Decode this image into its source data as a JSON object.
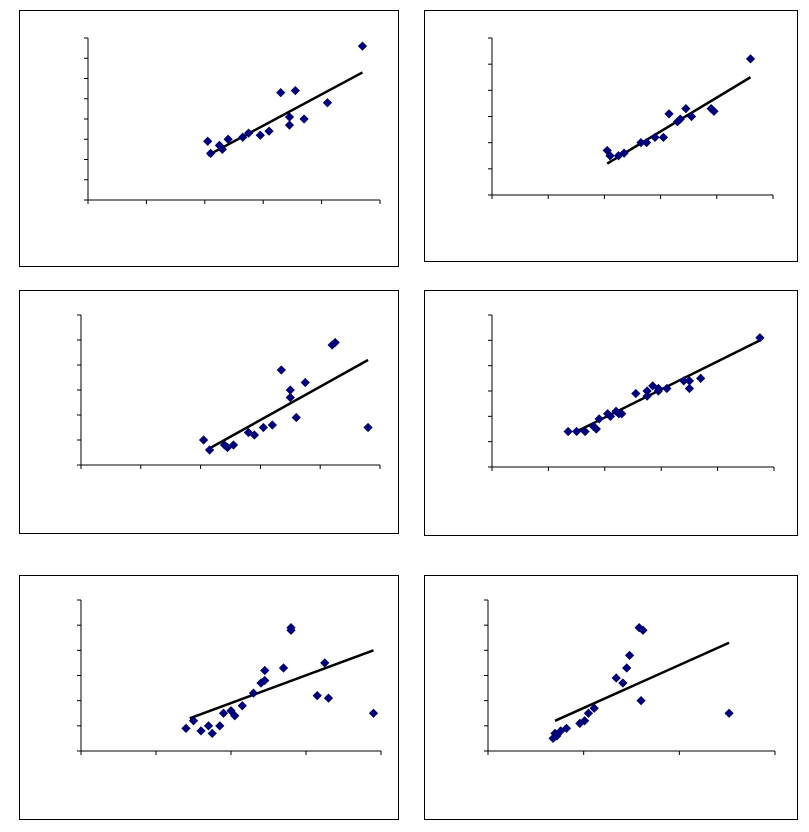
{
  "colors": {
    "marker_fill": "#00007f",
    "marker_stroke": "#000066",
    "trendline": "#000000",
    "axis": "#000000",
    "panel_border": "#000000",
    "background": "#ffffff"
  },
  "chart_data": [
    {
      "type": "scatter",
      "marker": "diamond",
      "trendline": "linear",
      "grid": false,
      "xlim": [
        0,
        10
      ],
      "ylim": [
        0,
        8
      ],
      "xticks": [
        0,
        2,
        4,
        6,
        8,
        10
      ],
      "yticks": [
        0,
        1,
        2,
        3,
        4,
        5,
        6,
        7,
        8
      ],
      "points": [
        [
          4.1,
          2.9
        ],
        [
          4.2,
          2.3
        ],
        [
          4.5,
          2.7
        ],
        [
          4.6,
          2.5
        ],
        [
          4.8,
          3.0
        ],
        [
          5.3,
          3.1
        ],
        [
          5.5,
          3.3
        ],
        [
          5.9,
          3.2
        ],
        [
          6.2,
          3.4
        ],
        [
          6.6,
          5.3
        ],
        [
          6.9,
          3.7
        ],
        [
          6.9,
          4.1
        ],
        [
          7.1,
          5.4
        ],
        [
          7.4,
          4.0
        ],
        [
          8.2,
          4.8
        ],
        [
          9.4,
          7.6
        ]
      ],
      "trend_line": [
        [
          4.1,
          2.2
        ],
        [
          9.4,
          6.3
        ]
      ]
    },
    {
      "type": "scatter",
      "marker": "diamond",
      "trendline": "linear",
      "grid": false,
      "xlim": [
        0,
        10
      ],
      "ylim": [
        0,
        6
      ],
      "xticks": [
        0,
        2,
        4,
        6,
        8,
        10
      ],
      "yticks": [
        0,
        1,
        2,
        3,
        4,
        5,
        6
      ],
      "points": [
        [
          4.1,
          1.7
        ],
        [
          4.2,
          1.5
        ],
        [
          4.5,
          1.5
        ],
        [
          4.7,
          1.6
        ],
        [
          5.3,
          2.0
        ],
        [
          5.5,
          2.0
        ],
        [
          5.8,
          2.2
        ],
        [
          6.1,
          2.2
        ],
        [
          6.3,
          3.1
        ],
        [
          6.6,
          2.8
        ],
        [
          6.7,
          2.9
        ],
        [
          6.9,
          3.3
        ],
        [
          7.1,
          3.0
        ],
        [
          7.8,
          3.3
        ],
        [
          7.9,
          3.2
        ],
        [
          9.2,
          5.2
        ]
      ],
      "trend_line": [
        [
          4.1,
          1.2
        ],
        [
          9.2,
          4.5
        ]
      ]
    },
    {
      "type": "scatter",
      "marker": "diamond",
      "trendline": "linear",
      "grid": false,
      "xlim": [
        0,
        10
      ],
      "ylim": [
        0,
        6
      ],
      "xticks": [
        0,
        2,
        4,
        6,
        8,
        10
      ],
      "yticks": [
        0,
        1,
        2,
        3,
        4,
        5,
        6
      ],
      "points": [
        [
          4.3,
          0.6
        ],
        [
          4.1,
          1.0
        ],
        [
          4.8,
          0.8
        ],
        [
          4.9,
          0.7
        ],
        [
          5.1,
          0.8
        ],
        [
          5.6,
          1.3
        ],
        [
          5.8,
          1.2
        ],
        [
          6.1,
          1.5
        ],
        [
          6.4,
          1.6
        ],
        [
          6.7,
          3.8
        ],
        [
          7.0,
          2.7
        ],
        [
          7.0,
          3.0
        ],
        [
          7.2,
          1.9
        ],
        [
          7.5,
          3.3
        ],
        [
          8.4,
          4.8
        ],
        [
          8.5,
          4.9
        ],
        [
          9.6,
          1.5
        ]
      ],
      "trend_line": [
        [
          4.2,
          0.6
        ],
        [
          9.6,
          4.2
        ]
      ]
    },
    {
      "type": "scatter",
      "marker": "diamond",
      "trendline": "linear",
      "grid": false,
      "xlim": [
        0,
        10
      ],
      "ylim": [
        0,
        6
      ],
      "xticks": [
        0,
        2,
        4,
        6,
        8,
        10
      ],
      "yticks": [
        0,
        1,
        2,
        3,
        4,
        5,
        6
      ],
      "points": [
        [
          2.7,
          1.4
        ],
        [
          3.0,
          1.4
        ],
        [
          3.3,
          1.4
        ],
        [
          3.6,
          1.6
        ],
        [
          3.7,
          1.5
        ],
        [
          3.8,
          1.9
        ],
        [
          4.1,
          2.1
        ],
        [
          4.2,
          2.0
        ],
        [
          4.4,
          2.2
        ],
        [
          4.5,
          2.1
        ],
        [
          4.6,
          2.1
        ],
        [
          5.1,
          2.9
        ],
        [
          5.5,
          3.0
        ],
        [
          5.5,
          2.8
        ],
        [
          5.7,
          3.2
        ],
        [
          5.9,
          3.0
        ],
        [
          5.9,
          3.1
        ],
        [
          6.2,
          3.1
        ],
        [
          6.8,
          3.4
        ],
        [
          7.0,
          3.1
        ],
        [
          7.0,
          3.4
        ],
        [
          7.4,
          3.5
        ],
        [
          9.5,
          5.1
        ]
      ],
      "trend_line": [
        [
          3.0,
          1.4
        ],
        [
          9.5,
          5.0
        ]
      ]
    },
    {
      "type": "scatter",
      "marker": "diamond",
      "trendline": "linear",
      "grid": false,
      "xlim": [
        0,
        8
      ],
      "ylim": [
        0,
        6
      ],
      "xticks": [
        0,
        2,
        4,
        6,
        8
      ],
      "yticks": [
        0,
        1,
        2,
        3,
        4,
        5,
        6
      ],
      "points": [
        [
          2.8,
          0.9
        ],
        [
          3.0,
          1.2
        ],
        [
          3.2,
          0.8
        ],
        [
          3.4,
          1.0
        ],
        [
          3.5,
          0.7
        ],
        [
          3.7,
          1.0
        ],
        [
          3.8,
          1.5
        ],
        [
          4.0,
          1.6
        ],
        [
          4.1,
          1.4
        ],
        [
          4.3,
          1.8
        ],
        [
          4.6,
          2.3
        ],
        [
          4.8,
          2.7
        ],
        [
          4.9,
          2.8
        ],
        [
          4.9,
          3.2
        ],
        [
          5.4,
          3.3
        ],
        [
          5.6,
          4.9
        ],
        [
          5.6,
          4.8
        ],
        [
          6.3,
          2.2
        ],
        [
          6.5,
          3.5
        ],
        [
          6.6,
          2.1
        ],
        [
          7.8,
          1.5
        ]
      ],
      "trend_line": [
        [
          2.9,
          1.3
        ],
        [
          7.8,
          4.0
        ]
      ]
    },
    {
      "type": "scatter",
      "marker": "diamond",
      "trendline": "linear",
      "grid": false,
      "xlim": [
        0,
        3
      ],
      "ylim": [
        0,
        6
      ],
      "xticks": [
        0,
        1,
        2,
        3
      ],
      "yticks": [
        0,
        1,
        2,
        3,
        4,
        5,
        6
      ],
      "points": [
        [
          0.68,
          0.5
        ],
        [
          0.7,
          0.7
        ],
        [
          0.72,
          0.6
        ],
        [
          0.76,
          0.8
        ],
        [
          0.82,
          0.9
        ],
        [
          0.96,
          1.1
        ],
        [
          1.01,
          1.2
        ],
        [
          1.05,
          1.5
        ],
        [
          1.11,
          1.7
        ],
        [
          1.34,
          2.9
        ],
        [
          1.41,
          2.7
        ],
        [
          1.45,
          3.3
        ],
        [
          1.48,
          3.8
        ],
        [
          1.58,
          4.9
        ],
        [
          1.62,
          4.8
        ],
        [
          1.6,
          2.0
        ],
        [
          2.52,
          1.5
        ]
      ],
      "trend_line": [
        [
          0.7,
          1.2
        ],
        [
          2.52,
          4.3
        ]
      ]
    }
  ]
}
